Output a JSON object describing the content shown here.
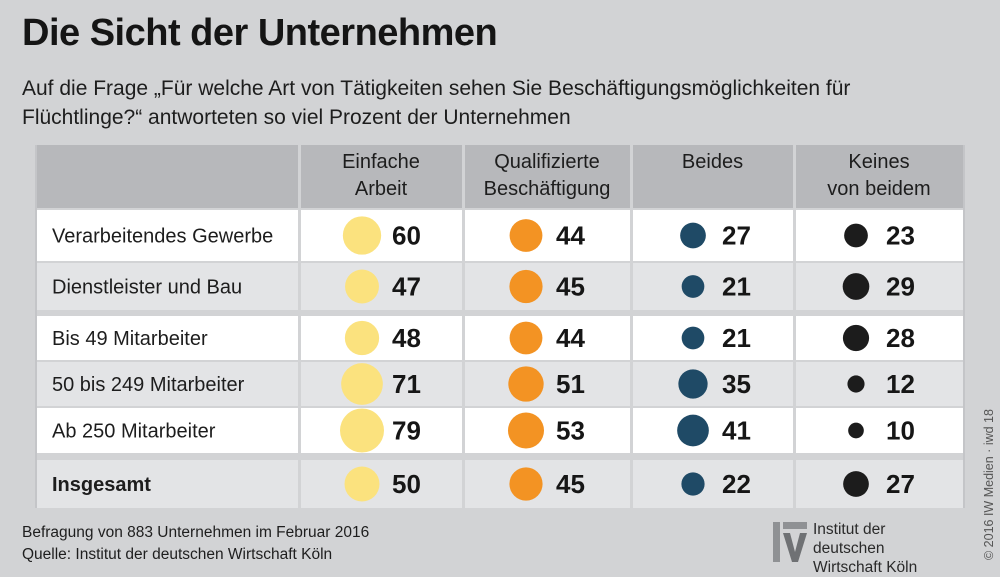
{
  "title": "Die Sicht der Unternehmen",
  "subtitle": "Auf die Frage „Für welche Art von Tätigkeiten sehen Sie Beschäftigungsmöglichkeiten für Flüchtlinge?“ antworteten so viel Prozent der Unternehmen",
  "footnote_survey": "Befragung von 883 Unternehmen im Februar 2016",
  "footnote_source": "Quelle: Institut der deutschen Wirtschaft Köln",
  "logo": {
    "line1": "Institut der deutschen",
    "line2": "Wirtschaft Köln"
  },
  "copyright": "© 2016 IW Medien · iwd 18",
  "colors": {
    "einfache": "#fbe27e",
    "qualifiziert": "#f39323",
    "beides": "#1f4a66",
    "keines": "#1c1c1c",
    "header_bg": "#b7b8bb",
    "row_white": "#ffffff",
    "row_grey": "#e3e4e6"
  },
  "chart_data": {
    "type": "table",
    "columns": [
      [
        "Einfache",
        "Arbeit"
      ],
      [
        "Qualifizierte",
        "Beschäftigung"
      ],
      [
        "Beides"
      ],
      [
        "Keines",
        "von beidem"
      ]
    ],
    "rows": [
      {
        "label": "Verarbeitendes Gewerbe",
        "values": [
          60,
          44,
          27,
          23
        ],
        "bold": false
      },
      {
        "label": "Dienstleister und Bau",
        "values": [
          47,
          45,
          21,
          29
        ],
        "bold": false
      },
      {
        "label": "Bis 49 Mitarbeiter",
        "values": [
          48,
          44,
          21,
          28
        ],
        "bold": false
      },
      {
        "label": "50 bis 249 Mitarbeiter",
        "values": [
          71,
          51,
          35,
          12
        ],
        "bold": false
      },
      {
        "label": "Ab 250 Mitarbeiter",
        "values": [
          79,
          53,
          41,
          10
        ],
        "bold": false
      },
      {
        "label": "Insgesamt",
        "values": [
          50,
          45,
          22,
          27
        ],
        "bold": true
      }
    ],
    "unit": "Prozent"
  }
}
